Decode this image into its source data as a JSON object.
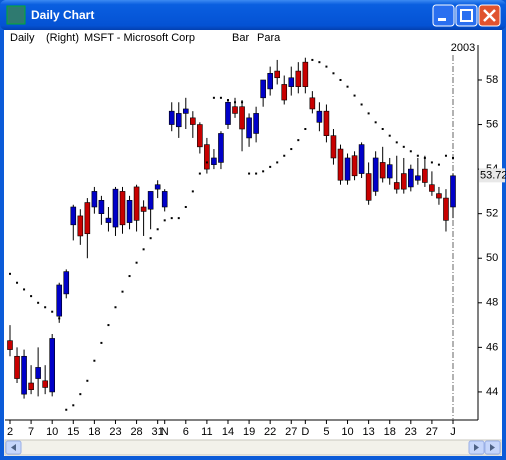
{
  "window": {
    "title": "Daily Chart"
  },
  "chart_data": {
    "type": "candlestick",
    "period": "Daily",
    "axis_side": "(Right)",
    "symbol": "MSFT - Microsoft Corp",
    "style": "Bar",
    "indicator": "Para",
    "year_label": "2003",
    "last_value": 53.72,
    "up_color": "#0000c8",
    "down_color": "#c80000",
    "sar_color": "#000000",
    "categories": [
      "2",
      null,
      null,
      "7",
      null,
      null,
      "10",
      null,
      null,
      "15",
      null,
      null,
      "18",
      null,
      null,
      "23",
      null,
      null,
      "28",
      null,
      null,
      "31",
      "N",
      null,
      null,
      "6",
      null,
      null,
      "11",
      null,
      null,
      "14",
      null,
      null,
      "19",
      null,
      null,
      "22",
      null,
      null,
      "27",
      null,
      "D",
      null,
      null,
      "5",
      null,
      null,
      "10",
      null,
      null,
      "13",
      null,
      null,
      "18",
      null,
      null,
      "23",
      null,
      null,
      "27",
      null,
      null,
      "J"
    ],
    "open": [
      46.3,
      45.6,
      43.9,
      44.4,
      44.6,
      44.5,
      44.0,
      47.4,
      48.4,
      51.5,
      51.9,
      52.5,
      52.3,
      52.0,
      51.6,
      51.4,
      53.0,
      51.6,
      53.2,
      52.3,
      52.2,
      53.1,
      52.3,
      56.0,
      55.9,
      56.5,
      56.3,
      56.0,
      55.1,
      54.2,
      54.3,
      56.0,
      56.8,
      56.8,
      55.4,
      55.6,
      57.2,
      57.6,
      58.4,
      57.8,
      57.7,
      58.4,
      58.8,
      57.2,
      56.1,
      56.6,
      55.5,
      54.9,
      53.5,
      54.6,
      53.8,
      53.8,
      53.0,
      54.3,
      53.6,
      53.4,
      53.8,
      53.2,
      53.5,
      54.0,
      53.3,
      52.9,
      52.7,
      52.3
    ],
    "high": [
      47,
      46,
      45.9,
      45.2,
      46,
      45.2,
      46.6,
      48.9,
      49.5,
      52.4,
      52.2,
      52.7,
      53.2,
      52.8,
      52.3,
      53.2,
      53.2,
      52.8,
      53.3,
      52.6,
      53.0,
      53.5,
      53.1,
      57,
      57,
      57.2,
      56.6,
      56.1,
      55.4,
      54.9,
      55.7,
      57.1,
      57.2,
      57.1,
      56.5,
      56.8,
      58,
      58.6,
      58.9,
      58.2,
      58.6,
      58.8,
      59,
      57.5,
      57,
      56.9,
      55.8,
      55.1,
      54.7,
      54.8,
      55.2,
      54.3,
      54.8,
      55,
      54.5,
      54.6,
      54.5,
      54.2,
      54.5,
      54.6,
      53.9,
      53.2,
      53.1,
      53.8
    ],
    "low": [
      45.6,
      44.4,
      43.7,
      43.9,
      43.8,
      43.9,
      43.8,
      47.1,
      48.2,
      50.8,
      50.6,
      50.0,
      52.0,
      51.5,
      51.2,
      51.0,
      51.1,
      51.3,
      51.2,
      51.0,
      51.3,
      52.7,
      52.1,
      55.7,
      55.4,
      55.8,
      55.4,
      54.7,
      53.8,
      54.0,
      54.0,
      55.8,
      56.3,
      54.8,
      55.0,
      55.2,
      56.8,
      57.3,
      57.8,
      56.9,
      57.3,
      57.4,
      57.4,
      56.5,
      55.7,
      55.2,
      54.2,
      53.3,
      53.3,
      53.5,
      53.6,
      52.4,
      52.8,
      53.4,
      53.3,
      52.9,
      52.9,
      53.0,
      53.3,
      53.2,
      52.8,
      52.4,
      51.2,
      51.8
    ],
    "close": [
      45.9,
      44.6,
      45.6,
      44.1,
      45.1,
      44.2,
      46.4,
      48.8,
      49.4,
      52.3,
      51.0,
      51.1,
      53.0,
      52.6,
      51.8,
      53.1,
      51.5,
      52.6,
      51.7,
      52.1,
      53.0,
      53.3,
      53.0,
      56.6,
      56.5,
      56.7,
      56.0,
      55.0,
      54.0,
      54.5,
      55.6,
      57.0,
      56.5,
      55.8,
      56.3,
      56.5,
      58.0,
      58.3,
      58.1,
      57.1,
      58.1,
      57.7,
      57.7,
      56.7,
      56.6,
      55.5,
      54.5,
      53.5,
      54.5,
      53.7,
      55.1,
      52.6,
      54.5,
      53.6,
      54.2,
      53.1,
      53.1,
      54.0,
      53.7,
      53.4,
      53.0,
      52.7,
      51.7,
      53.7
    ],
    "sar": [
      49.3,
      48.9,
      48.6,
      48.3,
      48.0,
      47.8,
      47.6,
      47.3,
      43.2,
      43.4,
      43.9,
      44.5,
      45.4,
      46.2,
      47.0,
      47.8,
      48.5,
      49.2,
      49.8,
      50.4,
      50.9,
      51.3,
      51.7,
      51.8,
      51.8,
      52.3,
      53.0,
      53.8,
      54.3,
      57.2,
      57.2,
      57.1,
      57.0,
      57.0,
      53.8,
      53.8,
      53.9,
      54.1,
      54.3,
      54.6,
      54.9,
      55.3,
      55.8,
      58.9,
      58.8,
      58.6,
      58.3,
      58.0,
      57.7,
      57.3,
      56.9,
      56.5,
      56.1,
      55.8,
      55.5,
      55.2,
      55.0,
      54.8,
      54.6,
      54.5,
      54.3,
      54.2,
      54.6,
      54.5
    ],
    "ylim": [
      42.74,
      59.57
    ],
    "yticks": [
      44,
      46,
      48,
      50,
      52,
      54,
      56,
      58
    ]
  }
}
